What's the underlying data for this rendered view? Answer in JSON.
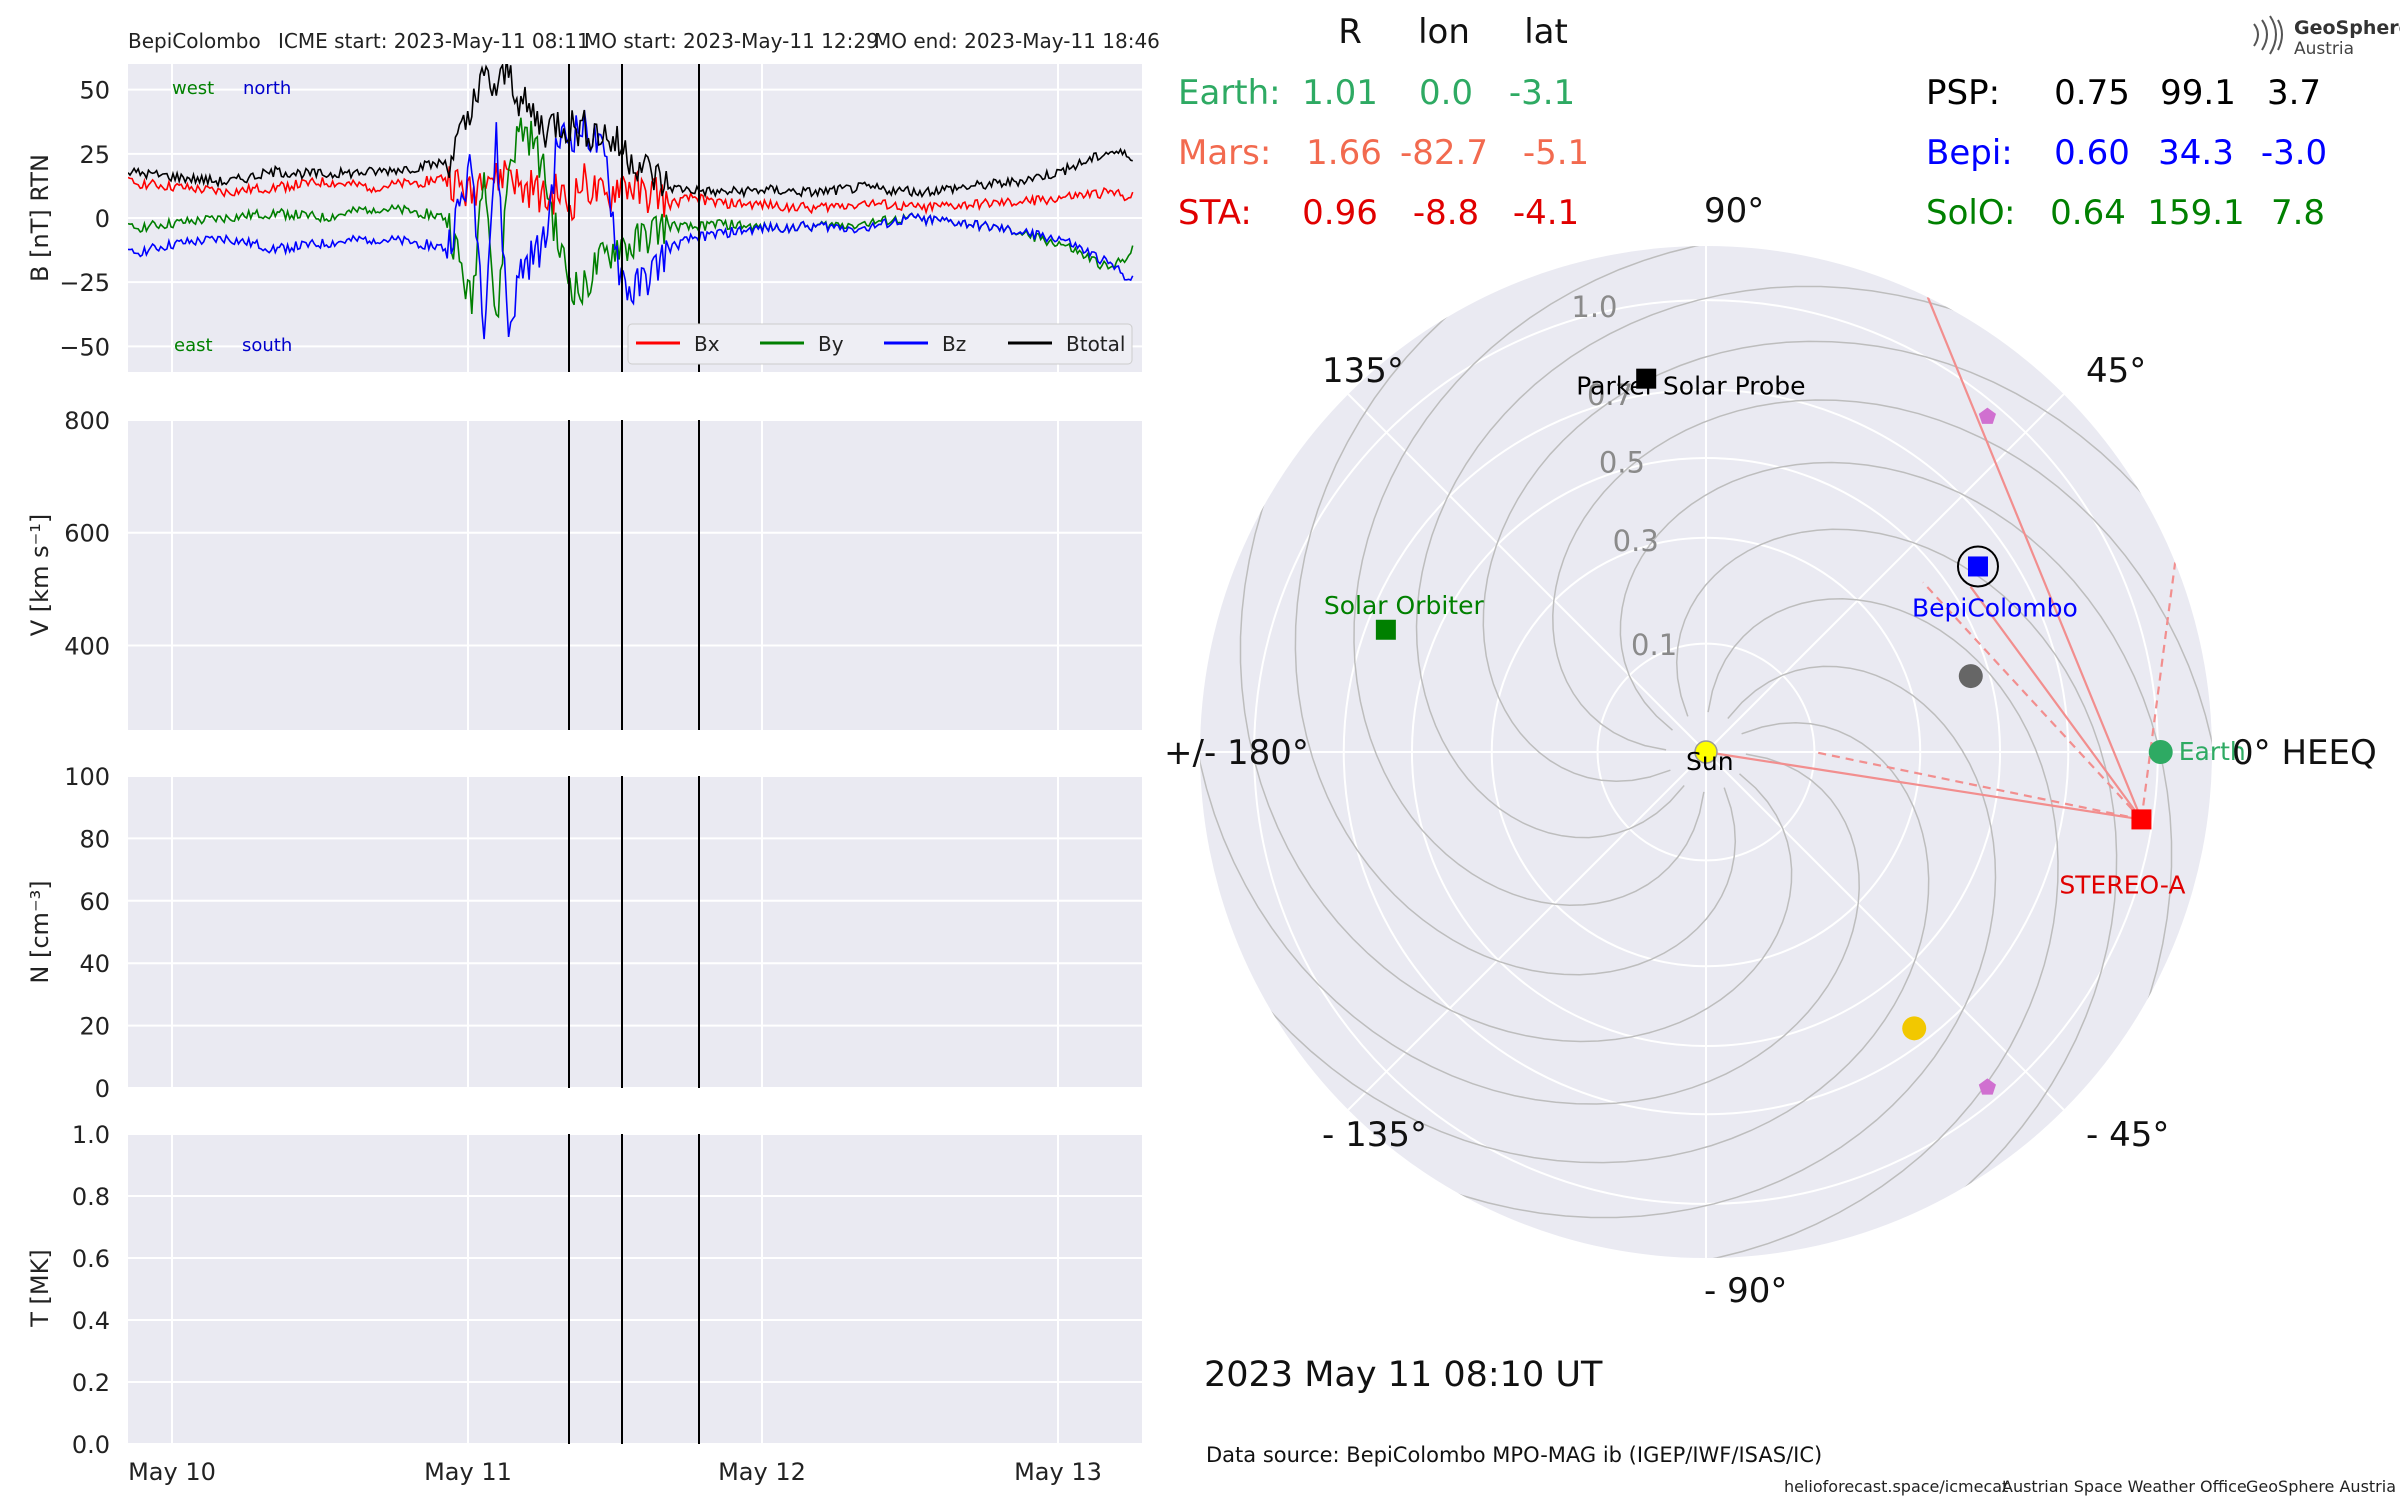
{
  "header": {
    "spacecraft": "BepiColombo",
    "icme_start": "ICME start: 2023-May-11 08:11",
    "mo_start": "MO start: 2023-May-11 12:29",
    "mo_end": "MO end: 2023-May-11 18:46"
  },
  "colors": {
    "bx": "#ff0000",
    "by": "#007f00",
    "bz": "#0000ff",
    "btotal": "#000000",
    "earth": "#2eaa63",
    "mars": "#f26a4f",
    "sta": "#e00000",
    "psp": "#000000",
    "bepi": "#0000ff",
    "solo": "#008000",
    "panel_bg": "#eaeaf2"
  },
  "chart_data": [
    {
      "type": "line",
      "panel": "B",
      "ylabel": "B [nT] RTN",
      "ylim": [
        -60,
        60
      ],
      "yticks": [
        "50",
        "25",
        "0",
        "−25",
        "−50"
      ],
      "ytick_values": [
        50,
        25,
        0,
        -25,
        -50
      ],
      "annotations": {
        "west": "west",
        "north": "north",
        "east": "east",
        "south": "south"
      },
      "legend": [
        "Bx",
        "By",
        "Bz",
        "Btotal"
      ],
      "legend_placement": "lower-right",
      "xlim_days": [
        "2023-05-09 20:00",
        "2023-05-13 06:00"
      ],
      "x_hours": [
        0,
        4,
        8,
        12,
        16,
        20,
        24,
        26,
        28,
        29,
        30,
        31,
        32,
        33,
        34,
        35,
        36,
        37,
        38,
        39,
        40,
        41,
        42,
        43,
        44,
        46,
        48,
        52,
        56,
        60,
        64,
        68,
        72,
        76,
        80,
        82
      ],
      "series": [
        {
          "name": "Bx",
          "values": [
            14,
            12,
            10,
            12,
            14,
            12,
            14,
            16,
            8,
            20,
            14,
            20,
            10,
            12,
            6,
            10,
            4,
            14,
            10,
            6,
            14,
            12,
            8,
            10,
            5,
            8,
            6,
            5,
            4,
            6,
            4,
            5,
            6,
            8,
            10,
            8
          ]
        },
        {
          "name": "By",
          "values": [
            -4,
            -2,
            0,
            2,
            0,
            4,
            2,
            0,
            -35,
            25,
            -45,
            20,
            35,
            30,
            15,
            -10,
            -25,
            -30,
            -20,
            -15,
            -10,
            -12,
            -8,
            -5,
            -3,
            -4,
            -2,
            -4,
            -3,
            -2,
            0,
            -2,
            -5,
            -10,
            -20,
            -12
          ]
        },
        {
          "name": "Bz",
          "values": [
            -14,
            -10,
            -8,
            -12,
            -10,
            -8,
            -10,
            -12,
            20,
            -40,
            30,
            -45,
            -20,
            -15,
            -10,
            30,
            32,
            35,
            30,
            20,
            -20,
            -30,
            -25,
            -20,
            -12,
            -8,
            -6,
            -4,
            -3,
            -4,
            0,
            -2,
            -5,
            -8,
            -18,
            -25
          ]
        },
        {
          "name": "Btotal",
          "values": [
            18,
            16,
            14,
            18,
            17,
            18,
            20,
            22,
            40,
            55,
            50,
            58,
            45,
            40,
            35,
            38,
            36,
            35,
            34,
            32,
            28,
            24,
            20,
            16,
            12,
            11,
            10,
            11,
            10,
            12,
            10,
            12,
            14,
            18,
            26,
            24
          ]
        }
      ]
    },
    {
      "type": "line",
      "panel": "V",
      "ylabel": "V [km s⁻¹]",
      "ylim": [
        250,
        800
      ],
      "yticks": [
        "800",
        "600",
        "400"
      ],
      "ytick_values": [
        800,
        600,
        400
      ]
    },
    {
      "type": "line",
      "panel": "N",
      "ylabel": "N [cm⁻³]",
      "ylim": [
        0,
        100
      ],
      "yticks": [
        "100",
        "80",
        "60",
        "40",
        "20",
        "0"
      ],
      "ytick_values": [
        100,
        80,
        60,
        40,
        20,
        0
      ]
    },
    {
      "type": "line",
      "panel": "T",
      "ylabel": "T [MK]",
      "ylim": [
        0,
        1
      ],
      "yticks": [
        "1.0",
        "0.8",
        "0.6",
        "0.4",
        "0.2",
        "0.0"
      ],
      "ytick_values": [
        1.0,
        0.8,
        0.6,
        0.4,
        0.2,
        0.0
      ]
    },
    {
      "type": "scatter",
      "panel": "polar",
      "angle_labels": {
        "a0": "0° HEEQ",
        "a45": "45°",
        "a90": "90°",
        "a135": "135°",
        "a180": "+/- 180°",
        "am135": "- 135°",
        "am90": "- 90°",
        "am45": "- 45°"
      },
      "r_labels": [
        "1.0",
        "0.7",
        "0.5",
        "0.3",
        "0.1"
      ],
      "r_values": [
        1.0,
        0.7,
        0.5,
        0.3,
        0.1
      ],
      "bodies": [
        {
          "name": "Parker Solar Probe",
          "r": 0.75,
          "lon": 99.1
        },
        {
          "name": "BepiColombo",
          "r": 0.6,
          "lon": 34.3
        },
        {
          "name": "Solar Orbiter",
          "r": 0.64,
          "lon": 159.1
        },
        {
          "name": "Earth",
          "r": 1.01,
          "lon": 0.0
        },
        {
          "name": "STEREO-A",
          "r": 0.96,
          "lon": -8.8
        },
        {
          "name": "Sun",
          "r": 0,
          "lon": 0
        }
      ],
      "unlabeled_points": [
        {
          "kind": "planet-gray",
          "r": 0.45,
          "lon": 16
        },
        {
          "kind": "planet-gold",
          "r": 0.65,
          "lon": -53
        },
        {
          "kind": "pentagon-violet",
          "r": 0.95,
          "lon": 50
        },
        {
          "kind": "pentagon-violet",
          "r": 0.95,
          "lon": -50
        }
      ]
    }
  ],
  "table": {
    "headers": [
      "R",
      "lon",
      "lat"
    ],
    "left": [
      {
        "name": "Earth:",
        "r": "1.01",
        "lon": "0.0",
        "lat": "-3.1"
      },
      {
        "name": "Mars:",
        "r": "1.66",
        "lon": "-82.7",
        "lat": "-5.1"
      },
      {
        "name": "STA:",
        "r": "0.96",
        "lon": "-8.8",
        "lat": "-4.1"
      }
    ],
    "right": [
      {
        "name": "PSP:",
        "r": "0.75",
        "lon": "99.1",
        "lat": "3.7"
      },
      {
        "name": "Bepi:",
        "r": "0.60",
        "lon": "34.3",
        "lat": "-3.0"
      },
      {
        "name": "SolO:",
        "r": "0.64",
        "lon": "159.1",
        "lat": "7.8"
      }
    ]
  },
  "x_axis": {
    "ticks": [
      "May 10",
      "May 11",
      "May 12",
      "May 13"
    ]
  },
  "timestamp": "2023 May 11  08:10 UT",
  "data_source": "Data source: BepiColombo MPO-MAG ib (IGEP/IWF/ISAS/IC)",
  "footer": {
    "site": "helioforecast.space/icmecat",
    "office": "Austrian Space Weather Office",
    "org": "GeoSphere Austria"
  },
  "logo": {
    "line1": "GeoSphere",
    "line2": "Austria",
    "icon": "geosphere-logo-icon"
  }
}
